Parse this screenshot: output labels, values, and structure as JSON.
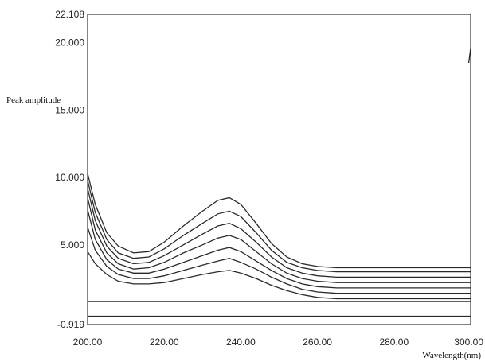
{
  "chart_data": {
    "type": "line",
    "title": "",
    "xlabel": "Wavelength(nm)",
    "ylabel": "Peak amplitude",
    "xlim": [
      200,
      300
    ],
    "ylim": [
      -0.919,
      22.108
    ],
    "x_ticks": [
      "200.00",
      "220.00",
      "240.00",
      "260.00",
      "280.00",
      "300.00"
    ],
    "y_ticks": [
      "22.108",
      "20.000",
      "15.000",
      "10.000",
      "5.000",
      "-0.919"
    ],
    "grid": false,
    "x": [
      200,
      202,
      205,
      208,
      212,
      216,
      220,
      225,
      230,
      234,
      237,
      240,
      244,
      248,
      252,
      256,
      260,
      265,
      270,
      280,
      290,
      300
    ],
    "series": [
      {
        "values": [
          10.3,
          8.0,
          5.9,
          4.9,
          4.4,
          4.5,
          5.2,
          6.4,
          7.5,
          8.3,
          8.5,
          8.0,
          6.6,
          5.1,
          4.1,
          3.6,
          3.4,
          3.3,
          3.3,
          3.3,
          3.3,
          3.3
        ]
      },
      {
        "values": [
          9.8,
          7.4,
          5.4,
          4.4,
          4.0,
          4.1,
          4.7,
          5.7,
          6.6,
          7.3,
          7.5,
          7.1,
          5.9,
          4.6,
          3.7,
          3.3,
          3.1,
          3.0,
          3.0,
          3.0,
          3.0,
          3.0
        ]
      },
      {
        "values": [
          9.2,
          6.8,
          4.9,
          4.0,
          3.6,
          3.7,
          4.2,
          5.0,
          5.8,
          6.4,
          6.6,
          6.2,
          5.2,
          4.1,
          3.3,
          2.9,
          2.7,
          2.6,
          2.6,
          2.6,
          2.6,
          2.6
        ]
      },
      {
        "values": [
          8.5,
          6.1,
          4.4,
          3.6,
          3.2,
          3.3,
          3.7,
          4.4,
          5.0,
          5.5,
          5.7,
          5.4,
          4.5,
          3.6,
          2.9,
          2.5,
          2.3,
          2.2,
          2.2,
          2.2,
          2.2,
          2.2
        ]
      },
      {
        "values": [
          7.6,
          5.4,
          3.9,
          3.2,
          2.9,
          2.9,
          3.2,
          3.7,
          4.2,
          4.6,
          4.8,
          4.5,
          3.8,
          3.1,
          2.5,
          2.1,
          1.9,
          1.8,
          1.8,
          1.8,
          1.8,
          1.8
        ]
      },
      {
        "values": [
          6.3,
          4.6,
          3.4,
          2.8,
          2.5,
          2.5,
          2.7,
          3.1,
          3.5,
          3.8,
          4.0,
          3.7,
          3.2,
          2.6,
          2.1,
          1.7,
          1.5,
          1.4,
          1.4,
          1.4,
          1.4,
          1.4
        ]
      },
      {
        "values": [
          4.5,
          3.6,
          2.8,
          2.3,
          2.1,
          2.1,
          2.2,
          2.5,
          2.8,
          3.0,
          3.1,
          2.9,
          2.5,
          2.0,
          1.6,
          1.3,
          1.1,
          1.0,
          1.0,
          1.0,
          1.0,
          1.0
        ]
      },
      {
        "values": [
          0.8,
          0.8,
          0.8,
          0.8,
          0.8,
          0.8,
          0.8,
          0.8,
          0.8,
          0.8,
          0.8,
          0.8,
          0.8,
          0.8,
          0.8,
          0.8,
          0.8,
          0.8,
          0.8,
          0.8,
          0.8,
          0.8
        ]
      },
      {
        "values": [
          -0.3,
          -0.3,
          -0.3,
          -0.3,
          -0.3,
          -0.3,
          -0.3,
          -0.3,
          -0.3,
          -0.3,
          -0.3,
          -0.3,
          -0.3,
          -0.3,
          -0.3,
          -0.3,
          -0.3,
          -0.3,
          -0.3,
          -0.3,
          -0.3,
          -0.3
        ]
      }
    ],
    "end_spike": {
      "x": [
        299.5,
        300
      ],
      "values": [
        18.5,
        19.6
      ]
    }
  }
}
